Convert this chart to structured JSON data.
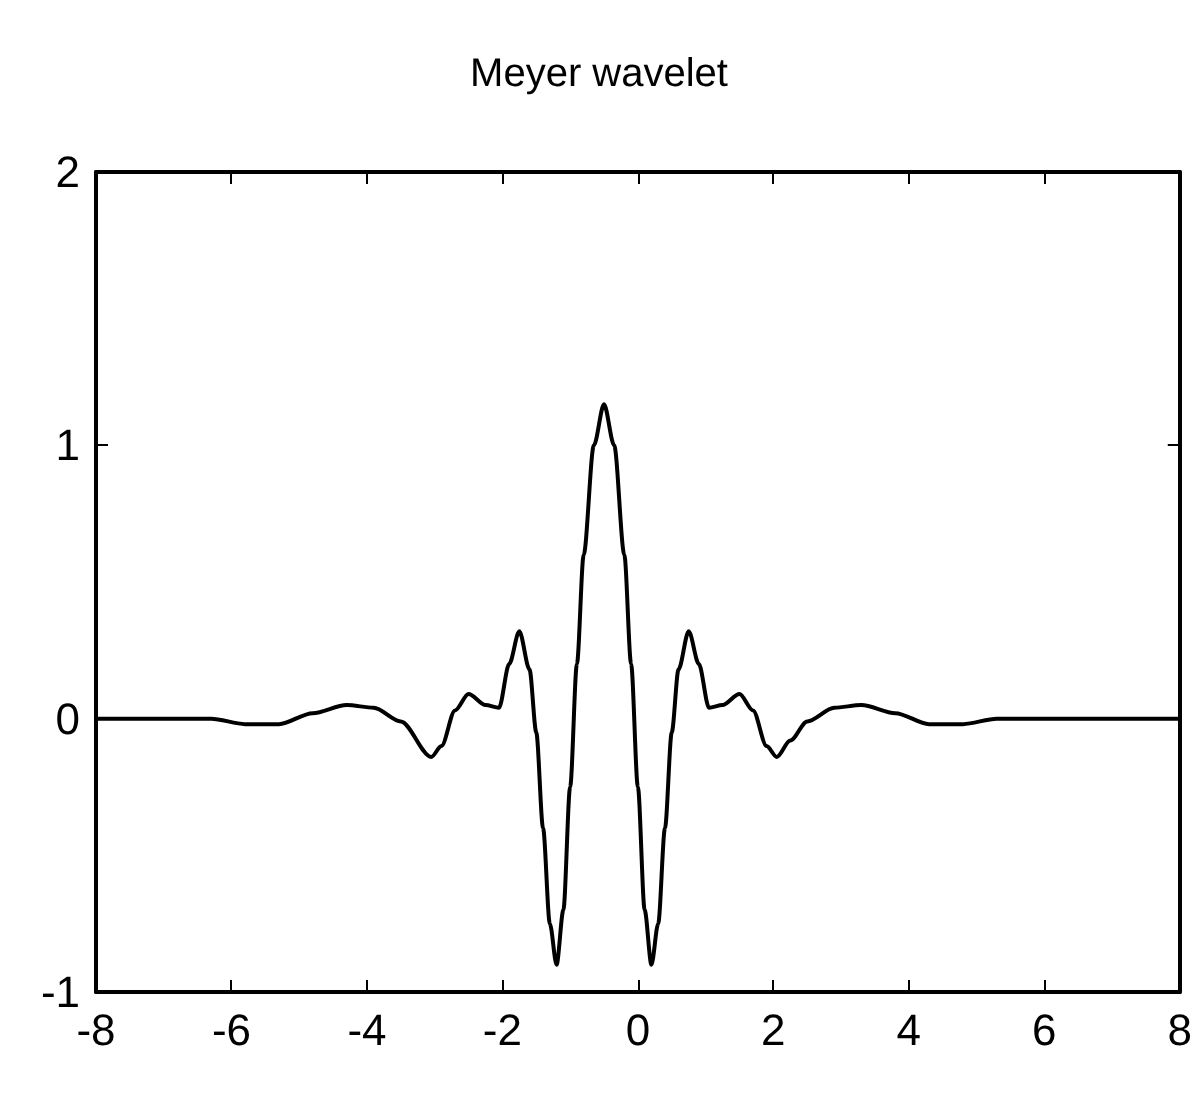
{
  "chart_data": {
    "type": "line",
    "title": "Meyer wavelet",
    "series": [
      {
        "color": "#000000",
        "x": [
          -8,
          -6.3,
          -5.8,
          -5.3,
          -4.8,
          -4.3,
          -3.9,
          -3.5,
          -3.05,
          -2.9,
          -2.7,
          -2.5,
          -2.25,
          -2.05,
          -1.9,
          -1.75,
          -1.6,
          -1.5,
          -1.4,
          -1.3,
          -1.2,
          -1.1,
          -1.0,
          -0.9,
          -0.8,
          -0.65,
          -0.5,
          -0.35,
          -0.2,
          -0.1,
          0,
          0.1,
          0.2,
          0.3,
          0.4,
          0.5,
          0.6,
          0.75,
          0.9,
          1.05,
          1.25,
          1.5,
          1.7,
          1.9,
          2.05,
          2.25,
          2.5,
          2.9,
          3.3,
          3.8,
          4.3,
          4.8,
          5.3,
          8
        ],
        "values": [
          0,
          0,
          -0.02,
          -0.02,
          0.02,
          0.05,
          0.04,
          -0.01,
          -0.14,
          -0.1,
          0.03,
          0.09,
          0.05,
          0.04,
          0.2,
          0.32,
          0.18,
          -0.05,
          -0.4,
          -0.75,
          -0.9,
          -0.7,
          -0.25,
          0.2,
          0.6,
          1.0,
          1.15,
          1.0,
          0.6,
          0.2,
          -0.25,
          -0.7,
          -0.9,
          -0.75,
          -0.4,
          -0.05,
          0.18,
          0.32,
          0.2,
          0.04,
          0.05,
          0.09,
          0.03,
          -0.1,
          -0.14,
          -0.08,
          -0.01,
          0.04,
          0.05,
          0.02,
          -0.02,
          -0.02,
          0,
          0
        ]
      }
    ],
    "xlim": [
      -8,
      8
    ],
    "xticks": [
      -8,
      -6,
      -4,
      -2,
      0,
      2,
      4,
      6,
      8
    ],
    "ylim": [
      -1,
      2
    ],
    "yticks": [
      -1,
      0,
      1,
      2
    ],
    "line_style": "solid"
  }
}
